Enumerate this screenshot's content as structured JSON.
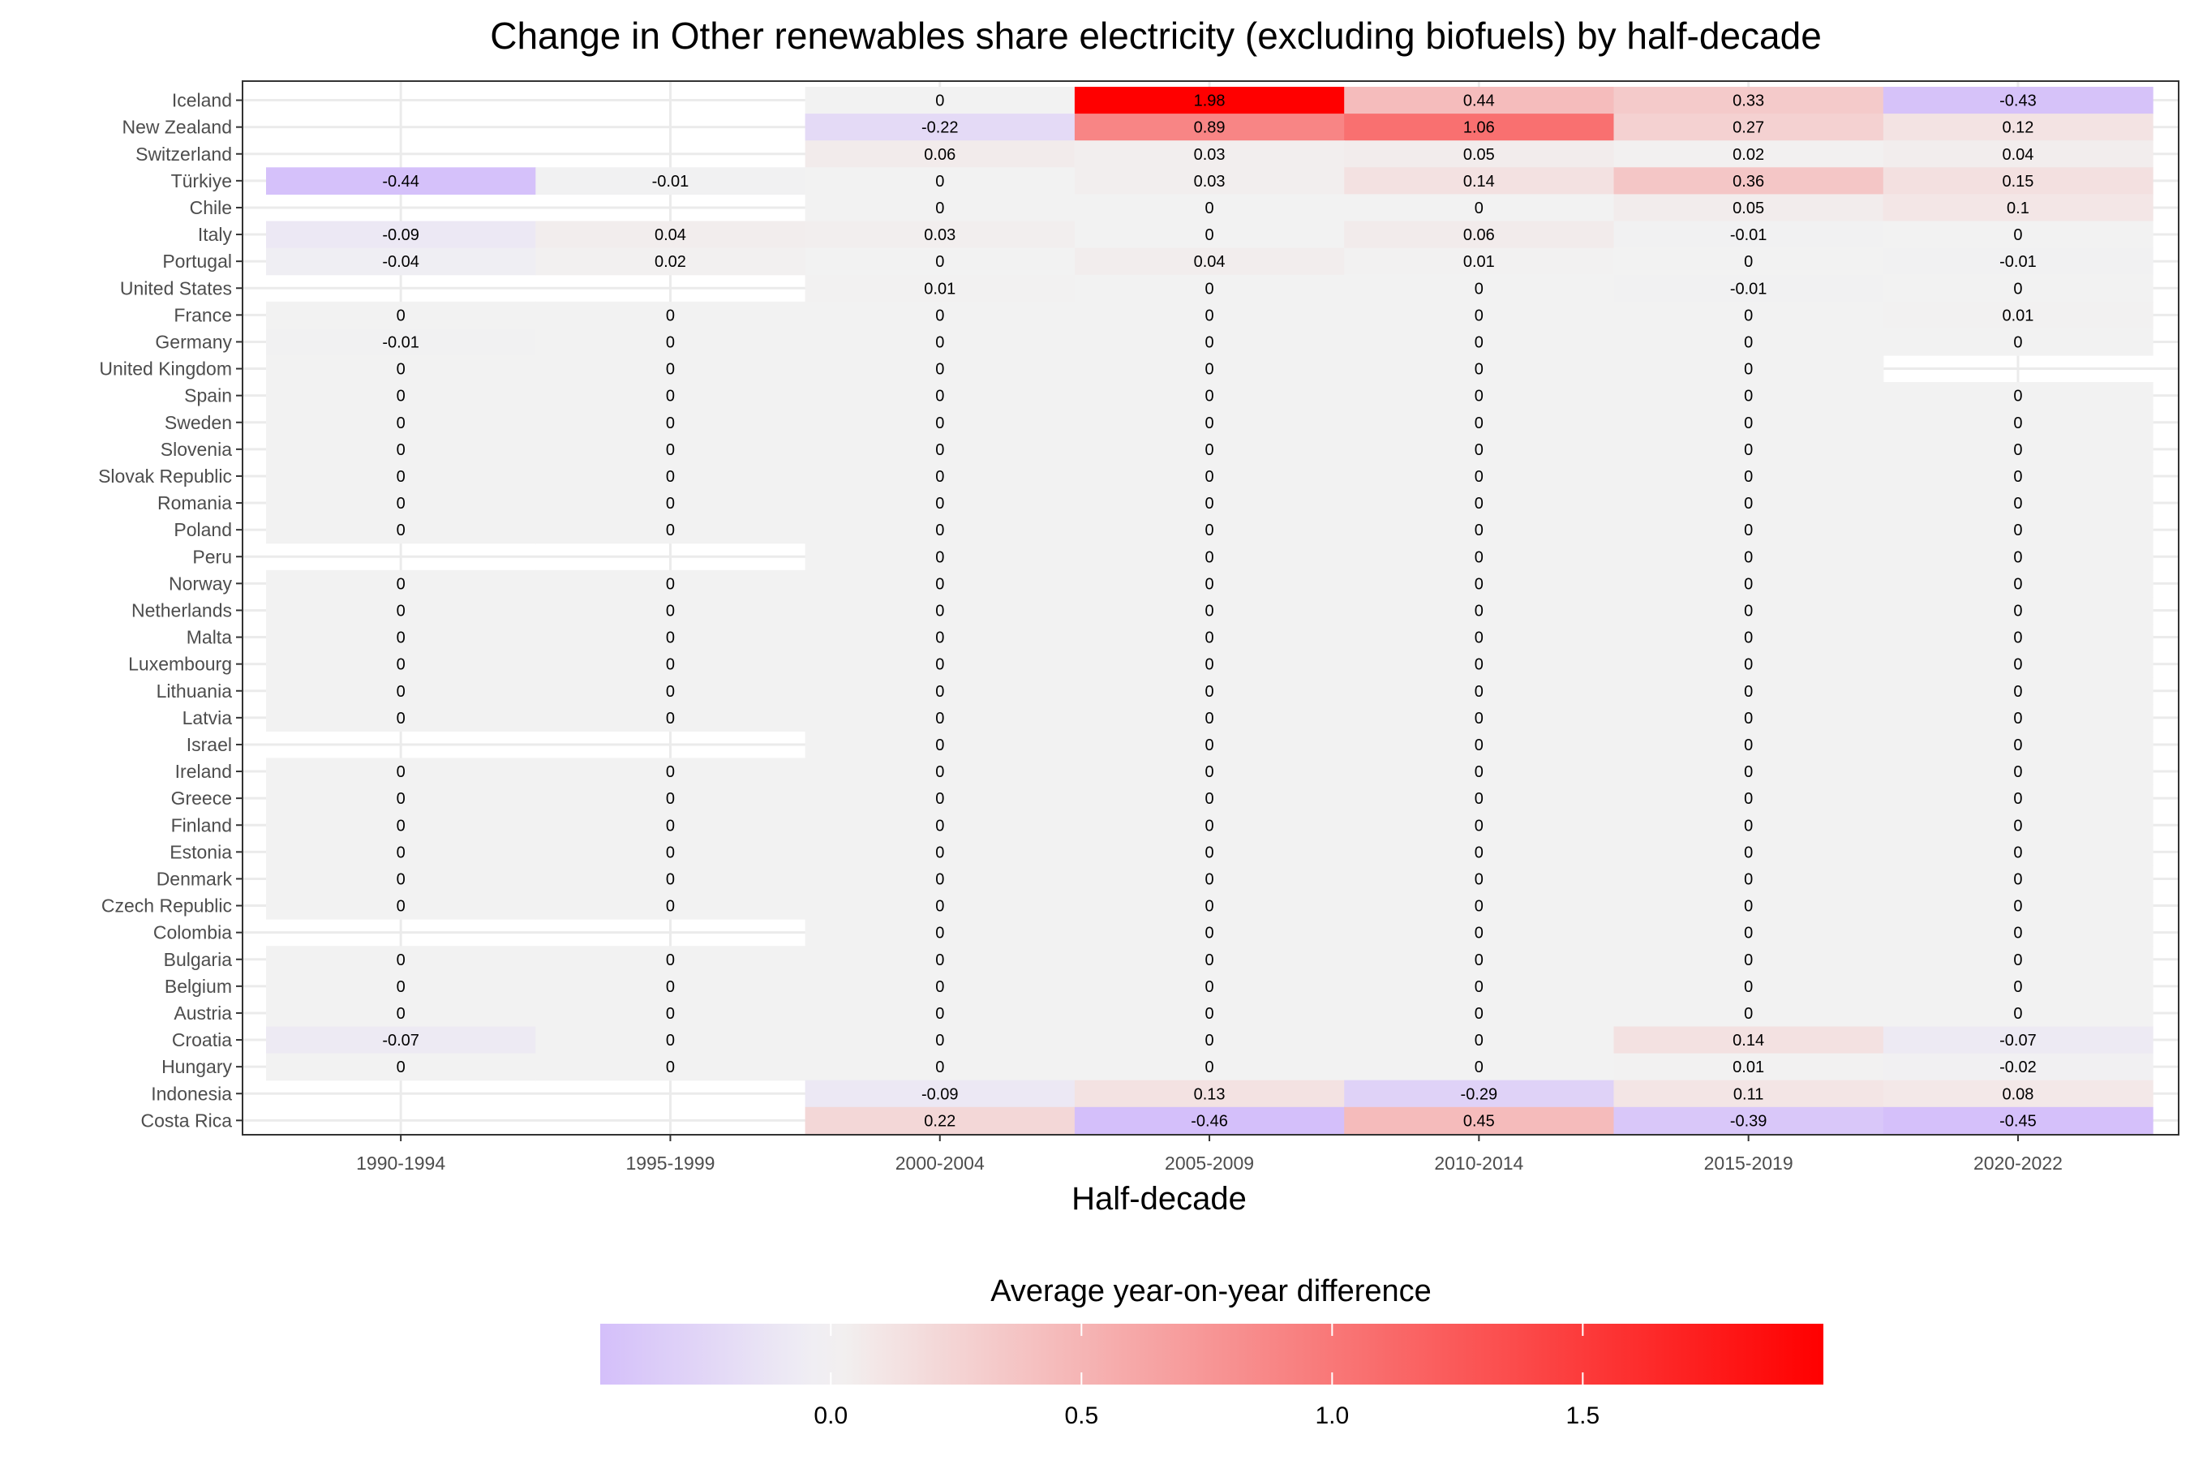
{
  "chart_data": {
    "type": "heatmap",
    "title": "Change in Other renewables share electricity (excluding biofuels) by half-decade",
    "xlabel": "Half-decade",
    "ylabel": "",
    "x_categories": [
      "1990-1994",
      "1995-1999",
      "2000-2004",
      "2005-2009",
      "2010-2014",
      "2015-2019",
      "2020-2022"
    ],
    "y_categories": [
      "Iceland",
      "New Zealand",
      "Switzerland",
      "Türkiye",
      "Chile",
      "Italy",
      "Portugal",
      "United States",
      "France",
      "Germany",
      "United Kingdom",
      "Spain",
      "Sweden",
      "Slovenia",
      "Slovak Republic",
      "Romania",
      "Poland",
      "Peru",
      "Norway",
      "Netherlands",
      "Malta",
      "Luxembourg",
      "Lithuania",
      "Latvia",
      "Israel",
      "Ireland",
      "Greece",
      "Finland",
      "Estonia",
      "Denmark",
      "Czech Republic",
      "Colombia",
      "Bulgaria",
      "Belgium",
      "Austria",
      "Croatia",
      "Hungary",
      "Indonesia",
      "Costa Rica"
    ],
    "values": [
      [
        null,
        null,
        0,
        1.98,
        0.44,
        0.33,
        -0.43
      ],
      [
        null,
        null,
        -0.22,
        0.89,
        1.06,
        0.27,
        0.12
      ],
      [
        null,
        null,
        0.06,
        0.03,
        0.05,
        0.02,
        0.04
      ],
      [
        -0.44,
        -0.01,
        0,
        0.03,
        0.14,
        0.36,
        0.15
      ],
      [
        null,
        null,
        0,
        0,
        0,
        0.05,
        0.1
      ],
      [
        -0.09,
        0.04,
        0.03,
        0,
        0.06,
        -0.01,
        0
      ],
      [
        -0.04,
        0.02,
        0,
        0.04,
        0.01,
        0,
        -0.01
      ],
      [
        null,
        null,
        0.01,
        0,
        0,
        -0.01,
        0
      ],
      [
        0,
        0,
        0,
        0,
        0,
        0,
        0.01
      ],
      [
        -0.01,
        0,
        0,
        0,
        0,
        0,
        0
      ],
      [
        0,
        0,
        0,
        0,
        0,
        0,
        null
      ],
      [
        0,
        0,
        0,
        0,
        0,
        0,
        0
      ],
      [
        0,
        0,
        0,
        0,
        0,
        0,
        0
      ],
      [
        0,
        0,
        0,
        0,
        0,
        0,
        0
      ],
      [
        0,
        0,
        0,
        0,
        0,
        0,
        0
      ],
      [
        0,
        0,
        0,
        0,
        0,
        0,
        0
      ],
      [
        0,
        0,
        0,
        0,
        0,
        0,
        0
      ],
      [
        null,
        null,
        0,
        0,
        0,
        0,
        0
      ],
      [
        0,
        0,
        0,
        0,
        0,
        0,
        0
      ],
      [
        0,
        0,
        0,
        0,
        0,
        0,
        0
      ],
      [
        0,
        0,
        0,
        0,
        0,
        0,
        0
      ],
      [
        0,
        0,
        0,
        0,
        0,
        0,
        0
      ],
      [
        0,
        0,
        0,
        0,
        0,
        0,
        0
      ],
      [
        0,
        0,
        0,
        0,
        0,
        0,
        0
      ],
      [
        null,
        null,
        0,
        0,
        0,
        0,
        0
      ],
      [
        0,
        0,
        0,
        0,
        0,
        0,
        0
      ],
      [
        0,
        0,
        0,
        0,
        0,
        0,
        0
      ],
      [
        0,
        0,
        0,
        0,
        0,
        0,
        0
      ],
      [
        0,
        0,
        0,
        0,
        0,
        0,
        0
      ],
      [
        0,
        0,
        0,
        0,
        0,
        0,
        0
      ],
      [
        0,
        0,
        0,
        0,
        0,
        0,
        0
      ],
      [
        null,
        null,
        0,
        0,
        0,
        0,
        0
      ],
      [
        0,
        0,
        0,
        0,
        0,
        0,
        0
      ],
      [
        0,
        0,
        0,
        0,
        0,
        0,
        0
      ],
      [
        0,
        0,
        0,
        0,
        0,
        0,
        0
      ],
      [
        -0.07,
        0,
        0,
        0,
        0,
        0.14,
        -0.07
      ],
      [
        0,
        0,
        0,
        0,
        0,
        0.01,
        -0.02
      ],
      [
        null,
        null,
        -0.09,
        0.13,
        -0.29,
        0.11,
        0.08
      ],
      [
        null,
        null,
        0.22,
        -0.46,
        0.45,
        -0.39,
        -0.45
      ]
    ],
    "color_scale": {
      "title": "Average year-on-year difference",
      "low_color": "#d4bffa",
      "mid_color": "#f2f2f2",
      "high_color": "#ff0000",
      "range": [
        -0.46,
        1.98
      ],
      "midpoint": 0,
      "ticks": [
        "0.0",
        "0.5",
        "1.0",
        "1.5"
      ],
      "tick_values": [
        0,
        0.5,
        1.0,
        1.5
      ]
    },
    "grid": true,
    "legend_position": "bottom"
  }
}
